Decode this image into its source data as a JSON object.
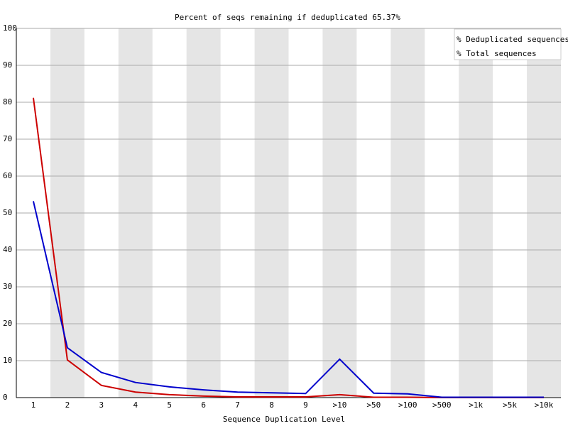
{
  "chart_data": {
    "type": "line",
    "title": "Percent of seqs remaining if deduplicated 65.37%",
    "x_label": "Sequence Duplication Level",
    "categories": [
      "1",
      "2",
      "3",
      "4",
      "5",
      "6",
      "7",
      "8",
      "9",
      ">10",
      ">50",
      ">100",
      ">500",
      ">1k",
      ">5k",
      ">10k"
    ],
    "series": [
      {
        "name": "% Deduplicated sequences",
        "color": "#cc0000",
        "values": [
          81.2,
          10.2,
          3.3,
          1.5,
          0.8,
          0.4,
          0.2,
          0.2,
          0.2,
          0.8,
          0.1,
          0.1,
          0,
          0,
          0,
          0
        ]
      },
      {
        "name": "% Total sequences",
        "color": "#0000cc",
        "values": [
          53.2,
          13.5,
          6.8,
          4.1,
          2.9,
          2.1,
          1.5,
          1.3,
          1.1,
          10.4,
          1.2,
          1.0,
          0.1,
          0.1,
          0.1,
          0.1
        ]
      }
    ],
    "ylim": [
      0,
      100
    ],
    "yticks": [
      0,
      10,
      20,
      30,
      40,
      50,
      60,
      70,
      80,
      90,
      100
    ],
    "grid": true,
    "legend": "top-right"
  }
}
